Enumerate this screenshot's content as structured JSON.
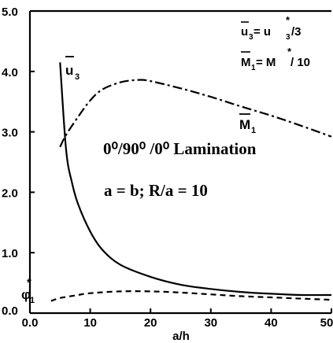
{
  "chart_data": {
    "type": "line",
    "xlabel": "a/h",
    "ylabel": "",
    "xlim": [
      0,
      50
    ],
    "ylim": [
      0,
      5
    ],
    "x_ticks": [
      "0.0",
      "10",
      "20",
      "30",
      "40",
      "50"
    ],
    "y_ticks": [
      "0.0",
      "1.0",
      "2.0",
      "3.0",
      "4.0",
      "5.0"
    ],
    "grid": false,
    "series": [
      {
        "name": "ū3",
        "style": "solid",
        "x": [
          5,
          6,
          7,
          8,
          10,
          12,
          15,
          20,
          25,
          30,
          35,
          40,
          45,
          50
        ],
        "y": [
          4.15,
          2.7,
          2.15,
          1.8,
          1.35,
          1.05,
          0.8,
          0.6,
          0.47,
          0.4,
          0.35,
          0.32,
          0.3,
          0.3
        ]
      },
      {
        "name": "M̄1",
        "style": "dashdot",
        "x": [
          5,
          6,
          8,
          10,
          12,
          15,
          18,
          20,
          25,
          30,
          35,
          40,
          45,
          50
        ],
        "y": [
          2.75,
          2.95,
          3.25,
          3.52,
          3.7,
          3.82,
          3.86,
          3.84,
          3.72,
          3.58,
          3.42,
          3.27,
          3.1,
          2.92
        ]
      },
      {
        "name": "φ1*",
        "style": "dashed",
        "x": [
          3.5,
          5,
          8,
          10,
          15,
          20,
          25,
          30,
          35,
          40,
          45,
          50
        ],
        "y": [
          0.2,
          0.25,
          0.3,
          0.33,
          0.36,
          0.36,
          0.34,
          0.31,
          0.28,
          0.26,
          0.24,
          0.22
        ]
      }
    ],
    "labels": {
      "u3": "u",
      "u3_sub": "3",
      "m1": "M",
      "m1_sub": "1",
      "phi": "φ",
      "phi_sub": "1",
      "star": "*"
    },
    "annotations": {
      "eq_u3_left": "u",
      "eq_u3_sub": "3",
      "eq_u3_mid": " = u",
      "eq_u3_sub2": "3",
      "eq_u3_right": "/3",
      "eq_m1_left": "M",
      "eq_m1_sub": "1",
      "eq_m1_mid": " = M",
      "eq_m1_right": "/ 10",
      "star": "*",
      "lamination": "0⁰/90⁰ /0⁰  Lamination",
      "geometry": "a = b;  R/a = 10"
    }
  }
}
